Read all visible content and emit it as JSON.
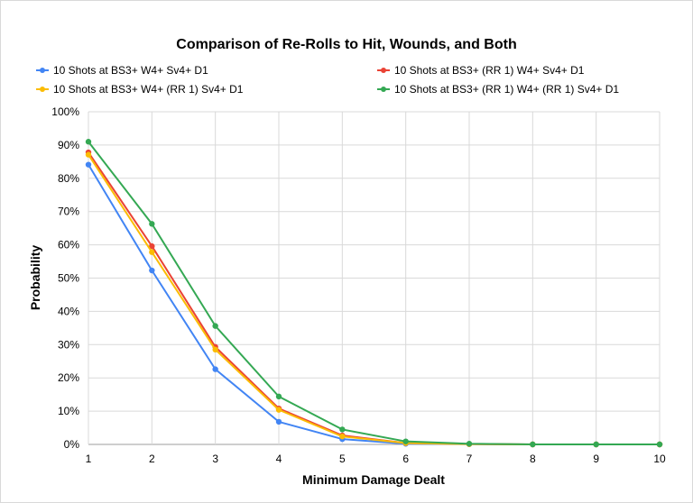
{
  "chart_data": {
    "type": "line",
    "title": "Comparison of Re-Rolls to Hit, Wounds, and Both",
    "xlabel": "Minimum Damage Dealt",
    "ylabel": "Probability",
    "x": [
      1,
      2,
      3,
      4,
      5,
      6,
      7,
      8,
      9,
      10
    ],
    "xlim": [
      1,
      10
    ],
    "ylim": [
      0,
      100
    ],
    "yticks": [
      "0%",
      "10%",
      "20%",
      "30%",
      "40%",
      "50%",
      "60%",
      "70%",
      "80%",
      "90%",
      "100%"
    ],
    "grid": true,
    "legend_position": "top",
    "series": [
      {
        "name": "10 Shots at BS3+ W4+ Sv4+ D1",
        "color": "#4285F4",
        "values": [
          84.1,
          52.3,
          22.6,
          6.8,
          1.6,
          0.2,
          0.1,
          0,
          0,
          0
        ]
      },
      {
        "name": "10 Shots at BS3+ (RR 1) W4+ Sv4+ D1",
        "color": "#EA4335",
        "values": [
          87.8,
          59.6,
          29.3,
          10.8,
          2.7,
          0.4,
          0.1,
          0,
          0,
          0
        ]
      },
      {
        "name": "10 Shots at BS3+ W4+ (RR 1) Sv4+ D1",
        "color": "#FBBC04",
        "values": [
          87.1,
          57.8,
          28.5,
          10.4,
          2.4,
          0.4,
          0.1,
          0,
          0,
          0
        ]
      },
      {
        "name": "10 Shots at BS3+ (RR 1) W4+ (RR 1) Sv4+ D1",
        "color": "#34A853",
        "values": [
          91.0,
          66.3,
          35.6,
          14.4,
          4.5,
          0.9,
          0.2,
          0,
          0,
          0
        ]
      }
    ]
  }
}
